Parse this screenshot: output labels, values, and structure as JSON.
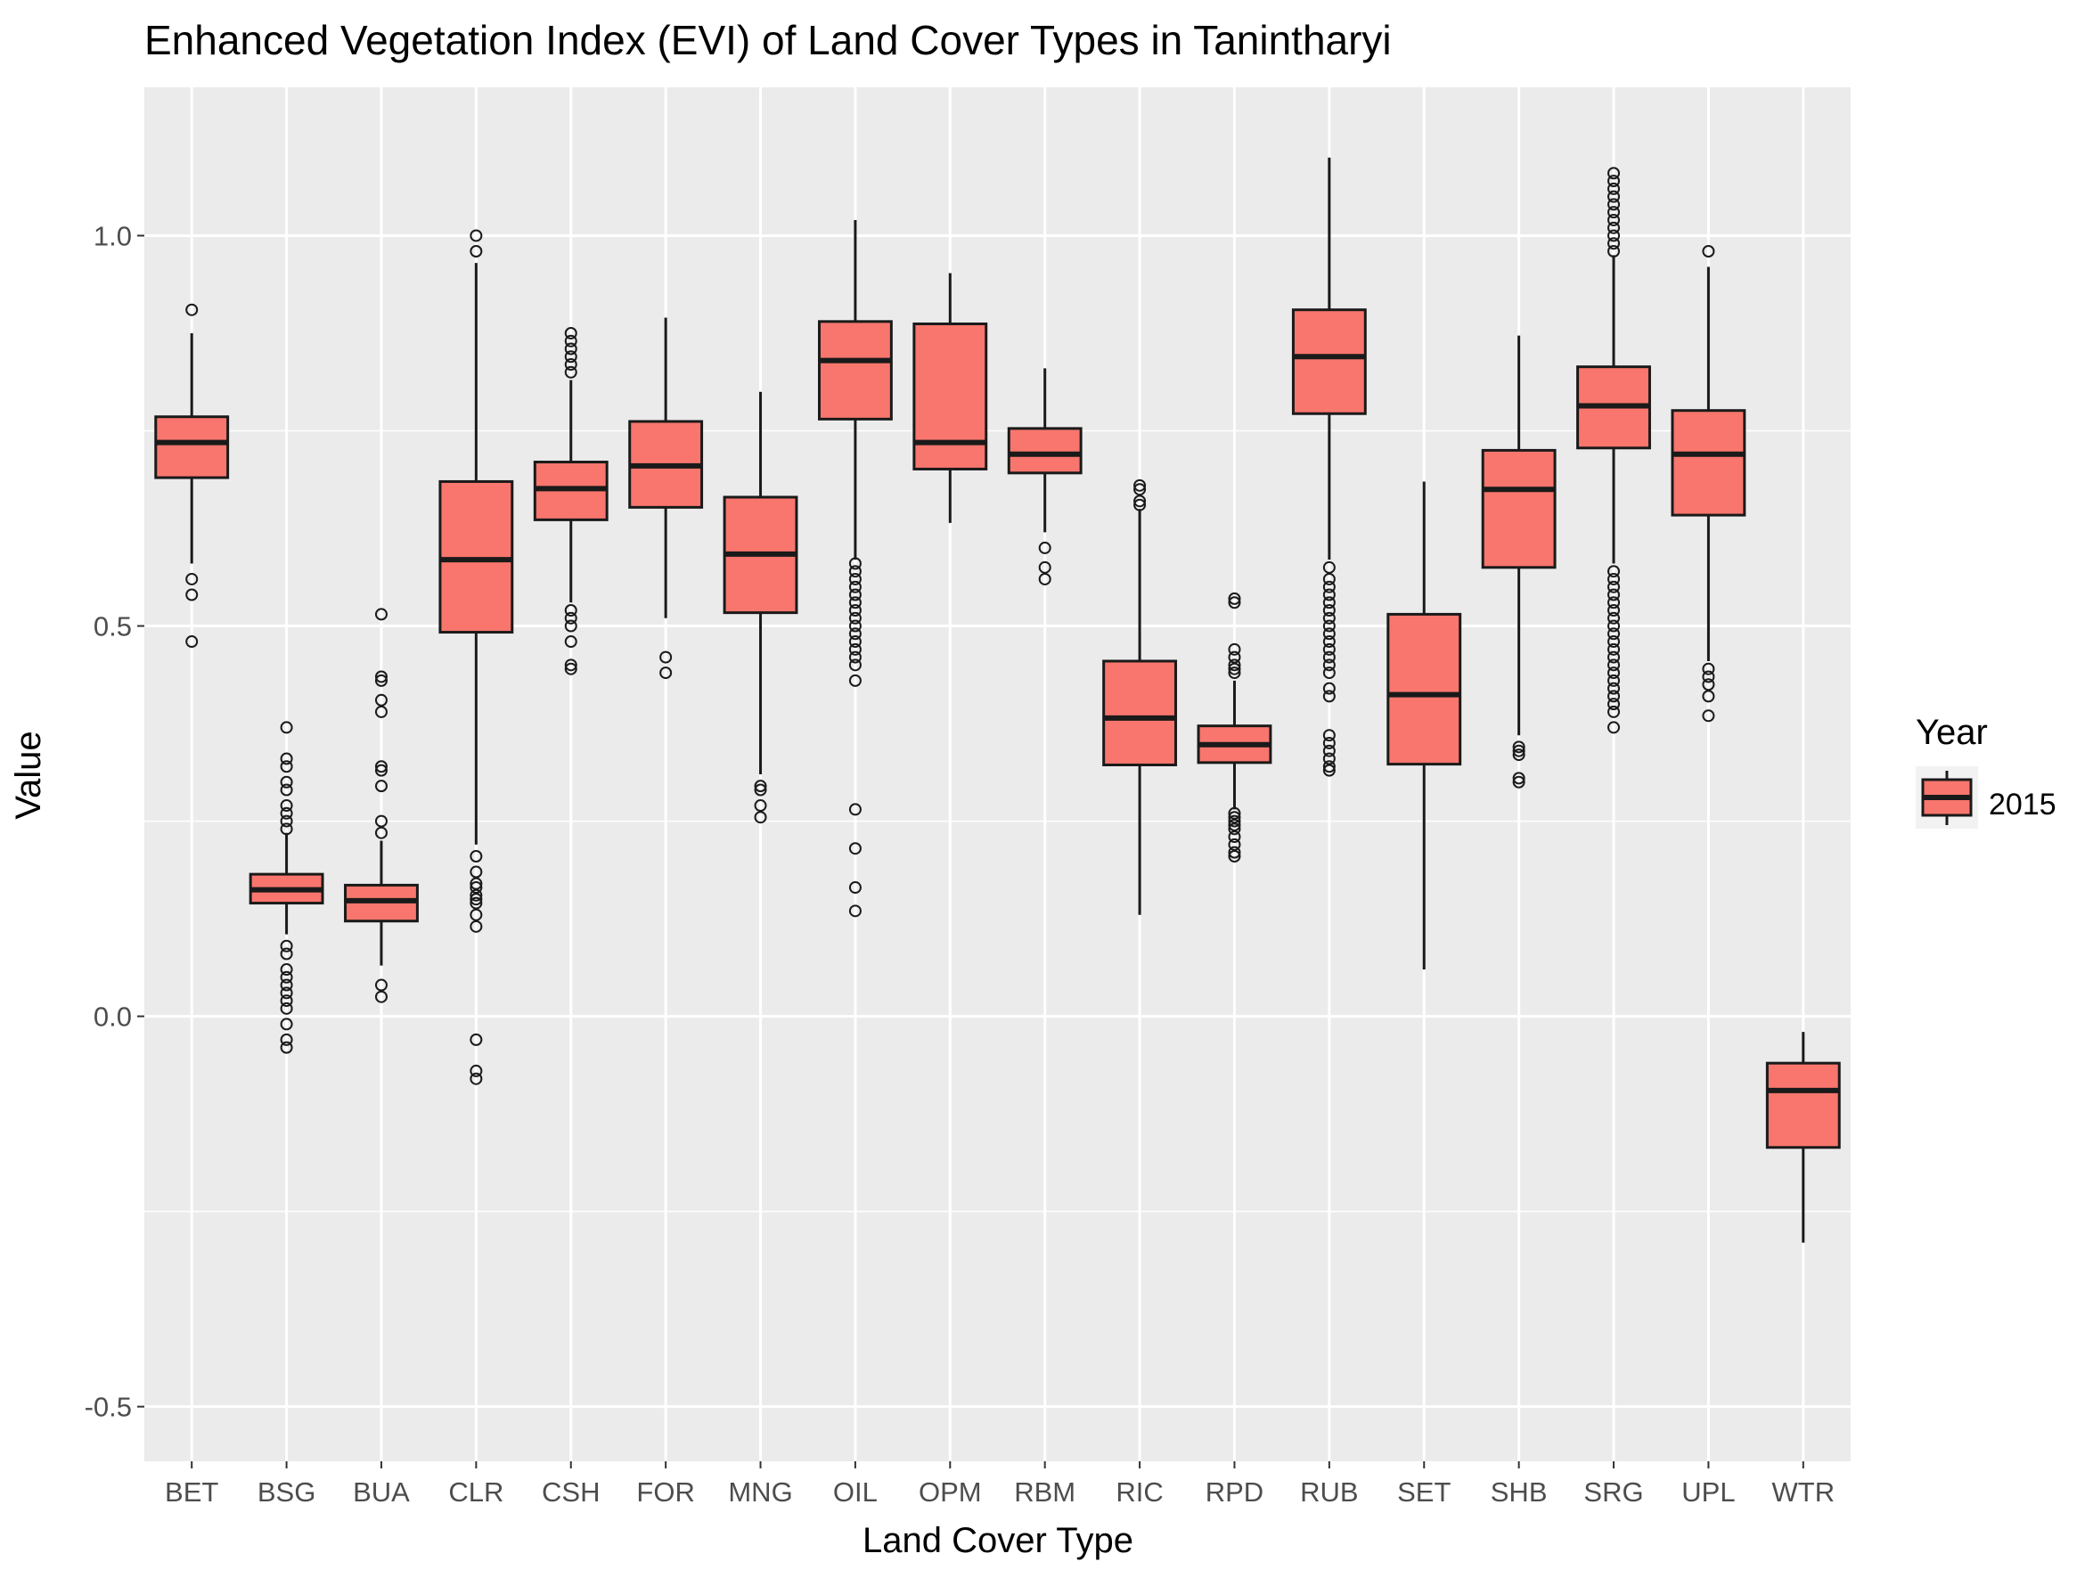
{
  "chart_data": {
    "type": "box",
    "title": "Enhanced Vegetation Index (EVI) of Land Cover Types in Tanintharyi",
    "xlabel": "Land Cover Type",
    "ylabel": "Value",
    "ylim": [
      -0.57,
      1.19
    ],
    "yticks": [
      -0.5,
      0.0,
      0.5,
      1.0
    ],
    "ytick_labels": [
      "-0.5",
      "0.0",
      "0.5",
      "1.0"
    ],
    "grid": true,
    "legend": {
      "title": "Year",
      "position": "right",
      "entries": [
        "2015"
      ]
    },
    "colors": {
      "fill": "#F8766D",
      "panel": "#EBEBEB",
      "grid": "#FFFFFF",
      "line": "#1A1A1A"
    },
    "categories": [
      "BET",
      "BSG",
      "BUA",
      "CLR",
      "CSH",
      "FOR",
      "MNG",
      "OIL",
      "OPM",
      "RBM",
      "RIC",
      "RPD",
      "RUB",
      "SET",
      "SHB",
      "SRG",
      "UPL",
      "WTR"
    ],
    "series": [
      {
        "name": "2015",
        "boxes": [
          {
            "whisker_low": 0.58,
            "q1": 0.69,
            "median": 0.735,
            "q3": 0.768,
            "whisker_high": 0.875,
            "outliers": [
              0.905,
              0.56,
              0.54,
              0.48
            ]
          },
          {
            "whisker_low": 0.105,
            "q1": 0.145,
            "median": 0.162,
            "q3": 0.182,
            "whisker_high": 0.235,
            "outliers": [
              0.37,
              0.33,
              0.32,
              0.3,
              0.29,
              0.27,
              0.26,
              0.25,
              0.24,
              0.09,
              0.08,
              0.06,
              0.05,
              0.04,
              0.03,
              0.02,
              0.01,
              -0.01,
              -0.03,
              -0.04
            ]
          },
          {
            "whisker_low": 0.065,
            "q1": 0.122,
            "median": 0.148,
            "q3": 0.168,
            "whisker_high": 0.225,
            "outliers": [
              0.515,
              0.435,
              0.43,
              0.405,
              0.39,
              0.32,
              0.315,
              0.295,
              0.25,
              0.235,
              0.04,
              0.025
            ]
          },
          {
            "whisker_low": 0.22,
            "q1": 0.492,
            "median": 0.585,
            "q3": 0.685,
            "whisker_high": 0.965,
            "outliers": [
              1.0,
              0.98,
              0.205,
              0.185,
              0.17,
              0.165,
              0.155,
              0.15,
              0.145,
              0.13,
              0.115,
              -0.03,
              -0.07,
              -0.08
            ]
          },
          {
            "whisker_low": 0.53,
            "q1": 0.636,
            "median": 0.676,
            "q3": 0.71,
            "whisker_high": 0.815,
            "outliers": [
              0.875,
              0.865,
              0.855,
              0.845,
              0.835,
              0.825,
              0.52,
              0.51,
              0.5,
              0.48,
              0.45,
              0.445
            ]
          },
          {
            "whisker_low": 0.51,
            "q1": 0.652,
            "median": 0.705,
            "q3": 0.762,
            "whisker_high": 0.895,
            "outliers": [
              0.46,
              0.44
            ]
          },
          {
            "whisker_low": 0.31,
            "q1": 0.517,
            "median": 0.592,
            "q3": 0.665,
            "whisker_high": 0.8,
            "outliers": [
              0.295,
              0.29,
              0.27,
              0.255
            ]
          },
          {
            "whisker_low": 0.585,
            "q1": 0.765,
            "median": 0.84,
            "q3": 0.89,
            "whisker_high": 1.02,
            "outliers": [
              0.58,
              0.57,
              0.56,
              0.55,
              0.54,
              0.53,
              0.52,
              0.51,
              0.5,
              0.49,
              0.48,
              0.47,
              0.46,
              0.45,
              0.43,
              0.265,
              0.215,
              0.165,
              0.135
            ]
          },
          {
            "whisker_low": 0.632,
            "q1": 0.701,
            "median": 0.735,
            "q3": 0.887,
            "whisker_high": 0.952,
            "outliers": []
          },
          {
            "whisker_low": 0.62,
            "q1": 0.696,
            "median": 0.72,
            "q3": 0.753,
            "whisker_high": 0.83,
            "outliers": [
              0.6,
              0.575,
              0.56
            ]
          },
          {
            "whisker_low": 0.13,
            "q1": 0.322,
            "median": 0.382,
            "q3": 0.455,
            "whisker_high": 0.65,
            "outliers": [
              0.68,
              0.675,
              0.66,
              0.655
            ]
          },
          {
            "whisker_low": 0.265,
            "q1": 0.325,
            "median": 0.348,
            "q3": 0.372,
            "whisker_high": 0.43,
            "outliers": [
              0.535,
              0.53,
              0.47,
              0.46,
              0.45,
              0.445,
              0.44,
              0.26,
              0.255,
              0.25,
              0.245,
              0.24,
              0.23,
              0.22,
              0.21,
              0.205
            ]
          },
          {
            "whisker_low": 0.585,
            "q1": 0.772,
            "median": 0.845,
            "q3": 0.905,
            "whisker_high": 1.1,
            "outliers": [
              0.575,
              0.56,
              0.55,
              0.54,
              0.53,
              0.52,
              0.51,
              0.5,
              0.49,
              0.48,
              0.47,
              0.46,
              0.45,
              0.44,
              0.42,
              0.41,
              0.36,
              0.35,
              0.34,
              0.33,
              0.32,
              0.315
            ]
          },
          {
            "whisker_low": 0.06,
            "q1": 0.323,
            "median": 0.412,
            "q3": 0.515,
            "whisker_high": 0.685,
            "outliers": []
          },
          {
            "whisker_low": 0.36,
            "q1": 0.575,
            "median": 0.675,
            "q3": 0.725,
            "whisker_high": 0.872,
            "outliers": [
              0.345,
              0.34,
              0.335,
              0.305,
              0.3
            ]
          },
          {
            "whisker_low": 0.58,
            "q1": 0.728,
            "median": 0.782,
            "q3": 0.832,
            "whisker_high": 0.975,
            "outliers": [
              1.08,
              1.07,
              1.06,
              1.05,
              1.04,
              1.03,
              1.02,
              1.01,
              1.0,
              0.99,
              0.98,
              0.57,
              0.56,
              0.55,
              0.54,
              0.53,
              0.52,
              0.51,
              0.5,
              0.49,
              0.48,
              0.47,
              0.46,
              0.45,
              0.44,
              0.43,
              0.42,
              0.41,
              0.4,
              0.39,
              0.37
            ]
          },
          {
            "whisker_low": 0.455,
            "q1": 0.642,
            "median": 0.72,
            "q3": 0.776,
            "whisker_high": 0.96,
            "outliers": [
              0.98,
              0.445,
              0.435,
              0.425,
              0.41,
              0.385
            ]
          },
          {
            "whisker_low": -0.29,
            "q1": -0.168,
            "median": -0.095,
            "q3": -0.06,
            "whisker_high": -0.02,
            "outliers": []
          }
        ]
      }
    ]
  }
}
